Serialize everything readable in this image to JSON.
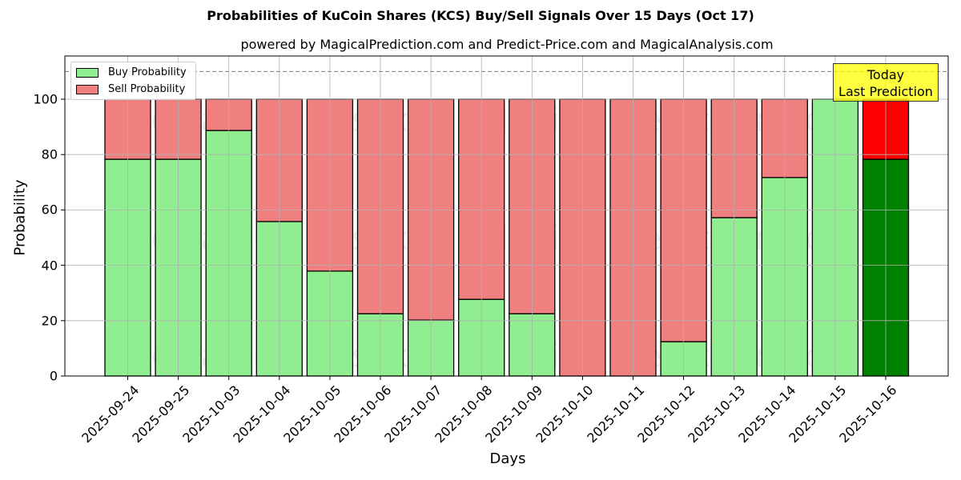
{
  "chart_data": {
    "type": "bar",
    "stacked": true,
    "title": "Probabilities of KuCoin Shares (KCS) Buy/Sell Signals Over 15 Days (Oct 17)",
    "subtitle": "powered by MagicalPrediction.com and Predict-Price.com and MagicalAnalysis.com",
    "xlabel": "Days",
    "ylabel": "Probability",
    "ylim": [
      0,
      115
    ],
    "yticks": [
      0,
      20,
      40,
      60,
      80,
      100
    ],
    "grid": true,
    "legend_position": "upper left",
    "reference_line": {
      "y": 110,
      "style": "dashed",
      "color": "#808080"
    },
    "categories": [
      "2025-09-24",
      "2025-09-25",
      "2025-10-03",
      "2025-10-04",
      "2025-10-05",
      "2025-10-06",
      "2025-10-07",
      "2025-10-08",
      "2025-10-09",
      "2025-10-10",
      "2025-10-11",
      "2025-10-12",
      "2025-10-13",
      "2025-10-14",
      "2025-10-15",
      "2025-10-16"
    ],
    "series": [
      {
        "name": "Buy Probability",
        "color": "#90ee90",
        "values": [
          78.3,
          78.3,
          88.7,
          55.8,
          37.9,
          22.5,
          20.2,
          27.7,
          22.5,
          0,
          0,
          12.4,
          57.2,
          71.7,
          100,
          78.3
        ]
      },
      {
        "name": "Sell Probability",
        "color": "#f08080",
        "values": [
          21.7,
          21.7,
          11.3,
          44.2,
          62.1,
          77.5,
          79.8,
          72.3,
          77.5,
          100,
          100,
          87.6,
          42.8,
          28.3,
          0,
          21.7
        ]
      }
    ],
    "highlight": {
      "index": 15,
      "buy_color": "#008000",
      "sell_color": "#ff0000",
      "annotation": "Today\nLast Prediction"
    },
    "watermarks": [
      "MagicalAnalysis.com",
      "MagicalPrediction.com"
    ]
  },
  "legend": {
    "buy": "Buy Probability",
    "sell": "Sell Probability"
  },
  "annotation": {
    "line1": "Today",
    "line2": "Last Prediction"
  }
}
